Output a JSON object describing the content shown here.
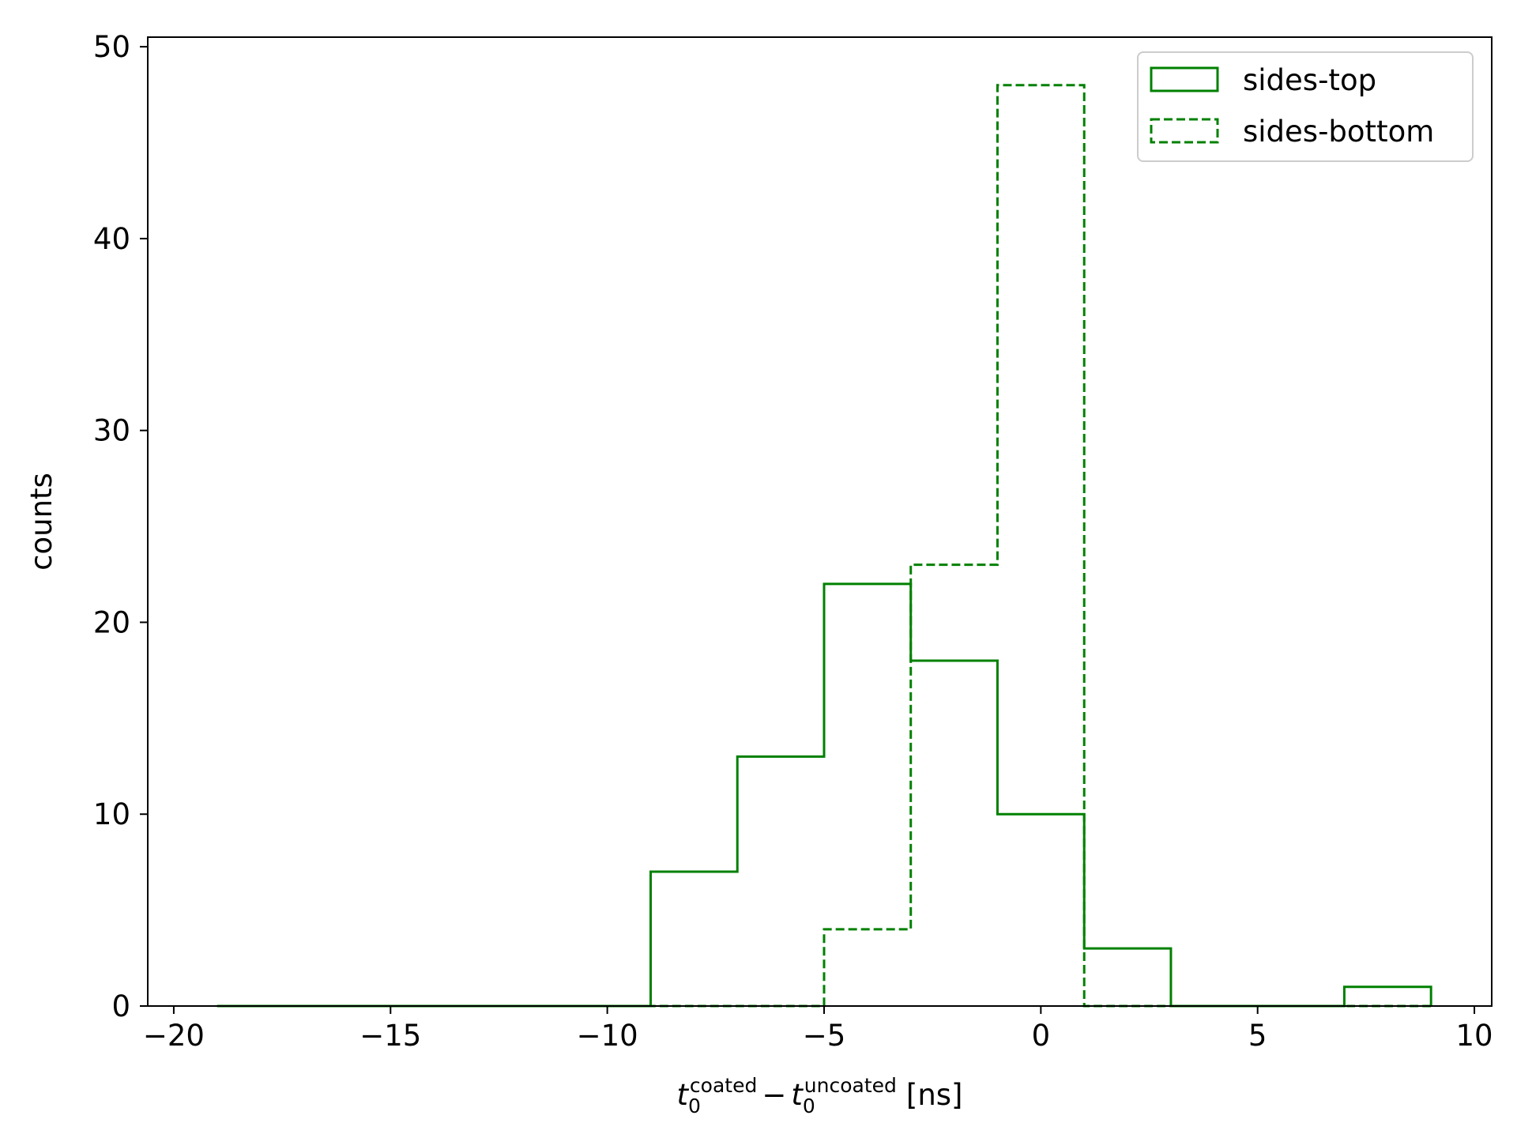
{
  "chart_data": {
    "type": "histogram",
    "title": "",
    "xlabel_math": {
      "t": "t",
      "sub": "0",
      "sup1": "coated",
      "minus": "−",
      "sup2": "uncoated",
      "unit": "[ns]"
    },
    "ylabel": "counts",
    "xlim": [
      -20.6,
      10.4
    ],
    "ylim": [
      0,
      50.5
    ],
    "xticks": [
      -20,
      -15,
      -10,
      -5,
      0,
      5,
      10
    ],
    "xtick_labels": [
      "−20",
      "−15",
      "−10",
      "−5",
      "0",
      "5",
      "10"
    ],
    "yticks": [
      0,
      10,
      20,
      30,
      40,
      50
    ],
    "ytick_labels": [
      "0",
      "10",
      "20",
      "30",
      "40",
      "50"
    ],
    "bin_edges": [
      -19,
      -17,
      -15,
      -13,
      -11,
      -9,
      -7,
      -5,
      -3,
      -1,
      1,
      3,
      5,
      7,
      9
    ],
    "series": [
      {
        "name": "sides-top",
        "style": "solid",
        "color": "#008000",
        "values": [
          0,
          0,
          0,
          0,
          0,
          7,
          13,
          22,
          18,
          10,
          3,
          0,
          0,
          1
        ]
      },
      {
        "name": "sides-bottom",
        "style": "dashed",
        "color": "#008000",
        "values": [
          0,
          0,
          0,
          0,
          0,
          0,
          0,
          4,
          23,
          48,
          0,
          0,
          0,
          0
        ]
      }
    ],
    "legend_position": "top-right",
    "grid": false
  }
}
